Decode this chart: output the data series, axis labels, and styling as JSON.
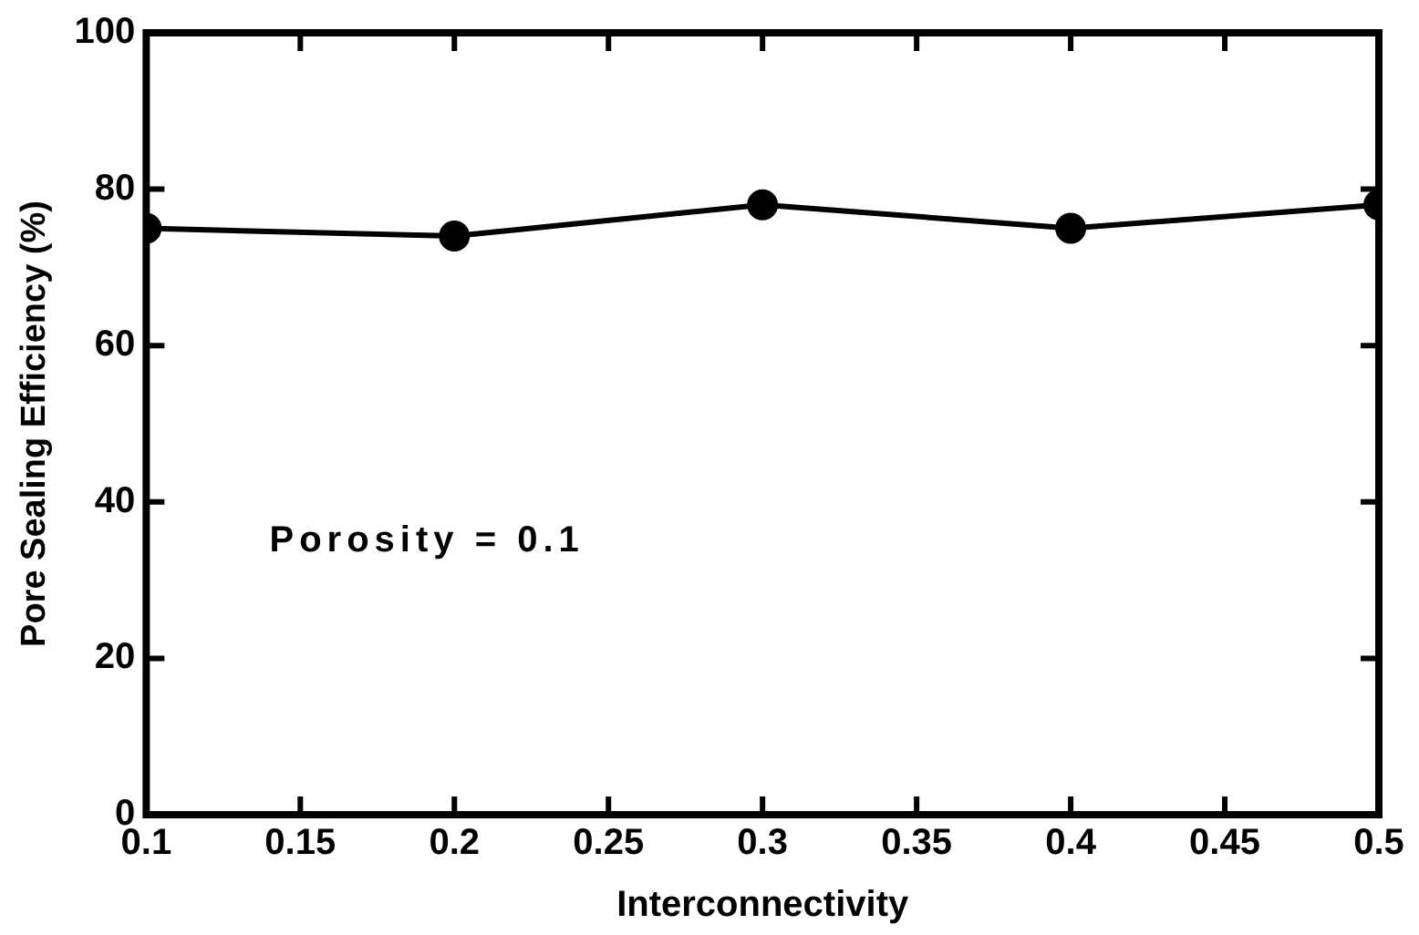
{
  "chart_data": {
    "type": "line",
    "xlabel": "Interconnectivity",
    "ylabel": "Pore Sealing Efficiency (%)",
    "annotations": [
      "Porosity = 0.1"
    ],
    "x": [
      0.1,
      0.2,
      0.3,
      0.4,
      0.5
    ],
    "series": [
      {
        "color": "#000000",
        "values": [
          75,
          74,
          78,
          75,
          78
        ]
      }
    ],
    "xlim": [
      0.1,
      0.5
    ],
    "xticks": [
      0.1,
      0.15,
      0.2,
      0.25,
      0.3,
      0.35,
      0.4,
      0.45,
      0.5
    ],
    "ylim": [
      0,
      100
    ],
    "yticks": [
      0,
      20,
      40,
      60,
      80,
      100
    ],
    "grid": false,
    "legend": false,
    "marker": "circle",
    "line_style": "solid"
  }
}
